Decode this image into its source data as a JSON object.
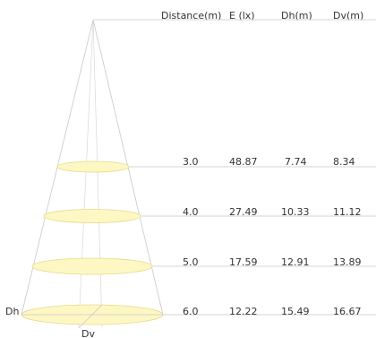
{
  "headers": {
    "distance": "Distance(m)",
    "illuminance": "E (lx)",
    "dh": "Dh(m)",
    "dv": "Dv(m)"
  },
  "rows": [
    {
      "distance": "3.0",
      "illuminance": "48.87",
      "dh": "7.74",
      "dv": "8.34"
    },
    {
      "distance": "4.0",
      "illuminance": "27.49",
      "dh": "10.33",
      "dv": "11.12"
    },
    {
      "distance": "5.0",
      "illuminance": "17.59",
      "dh": "12.91",
      "dv": "13.89"
    },
    {
      "distance": "6.0",
      "illuminance": "12.22",
      "dh": "15.49",
      "dv": "16.67"
    }
  ],
  "labels": {
    "dh": "Dh",
    "dv": "Dv"
  },
  "colors": {
    "ellipse_fill": "#fdf7c4",
    "ellipse_stroke": "#e6d98a",
    "line": "#c8c8c8",
    "text": "#333333"
  }
}
